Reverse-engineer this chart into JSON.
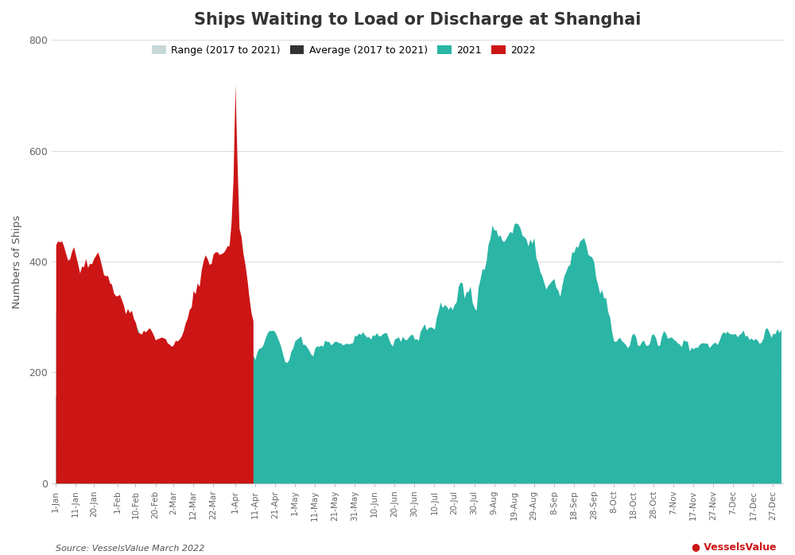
{
  "title": "Ships Waiting to Load or Discharge at Shanghai",
  "ylabel": "Numbers of Ships",
  "source": "Source: VesselsValue March 2022",
  "logo_text": "VesselsValue",
  "ylim": [
    0,
    800
  ],
  "yticks": [
    0,
    200,
    400,
    600,
    800
  ],
  "colors": {
    "range": "#c8d8d8",
    "average": "#333333",
    "year2021": "#2ab5a5",
    "year2022": "#cc1515"
  },
  "legend_labels": [
    "Range (2017 to 2021)",
    "Average (2017 to 2021)",
    "2021",
    "2022"
  ],
  "background_color": "#ffffff",
  "grid_color": "#dddddd",
  "tick_info": [
    [
      0,
      "1-Jan"
    ],
    [
      10,
      "11-Jan"
    ],
    [
      19,
      "20-Jan"
    ],
    [
      31,
      "1-Feb"
    ],
    [
      40,
      "10-Feb"
    ],
    [
      50,
      "20-Feb"
    ],
    [
      59,
      "2-Mar"
    ],
    [
      69,
      "12-Mar"
    ],
    [
      79,
      "22-Mar"
    ],
    [
      90,
      "1-Apr"
    ],
    [
      100,
      "11-Apr"
    ],
    [
      110,
      "21-Apr"
    ],
    [
      120,
      "1-May"
    ],
    [
      130,
      "11-May"
    ],
    [
      140,
      "21-May"
    ],
    [
      150,
      "31-May"
    ],
    [
      160,
      "10-Jun"
    ],
    [
      170,
      "20-Jun"
    ],
    [
      180,
      "30-Jun"
    ],
    [
      190,
      "10-Jul"
    ],
    [
      200,
      "20-Jul"
    ],
    [
      210,
      "30-Jul"
    ],
    [
      220,
      "9-Aug"
    ],
    [
      230,
      "19-Aug"
    ],
    [
      240,
      "29-Aug"
    ],
    [
      250,
      "8-Sep"
    ],
    [
      260,
      "18-Sep"
    ],
    [
      270,
      "28-Sep"
    ],
    [
      280,
      "8-Oct"
    ],
    [
      290,
      "18-Oct"
    ],
    [
      300,
      "28-Oct"
    ],
    [
      310,
      "7-Nov"
    ],
    [
      320,
      "17-Nov"
    ],
    [
      330,
      "27-Nov"
    ],
    [
      340,
      "7-Dec"
    ],
    [
      350,
      "17-Dec"
    ],
    [
      360,
      "27-Dec"
    ]
  ]
}
